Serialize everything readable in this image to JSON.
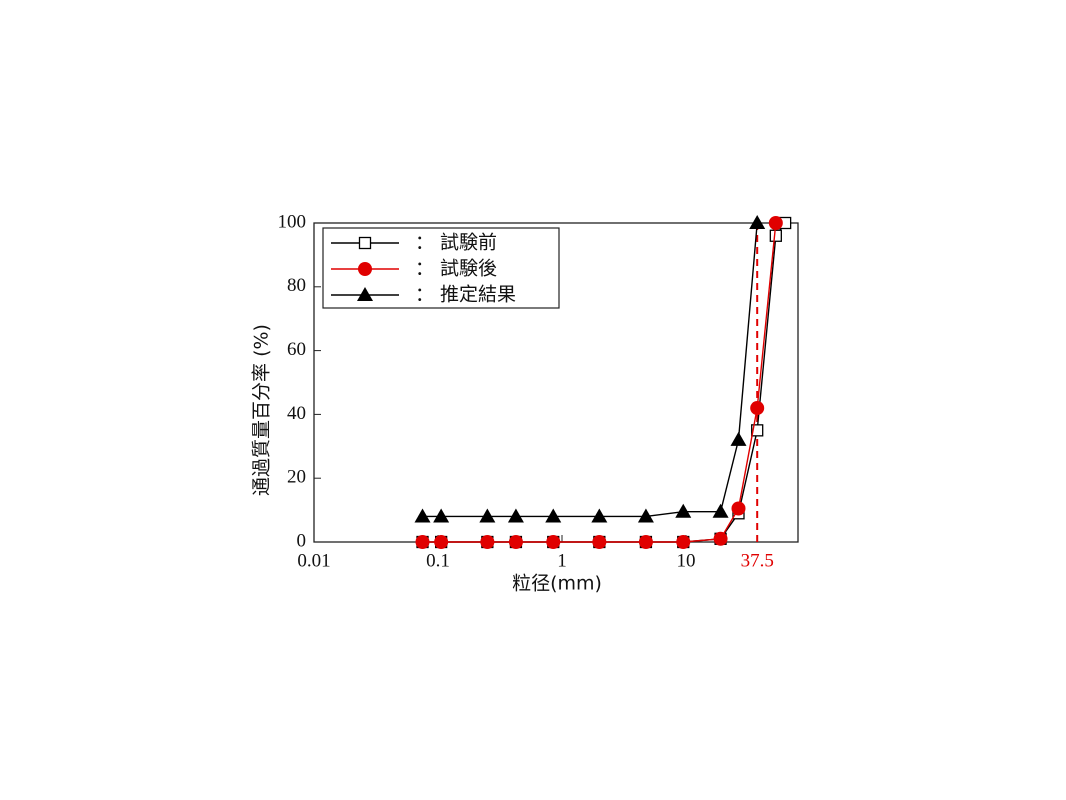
{
  "chart_data": {
    "type": "line",
    "x_label": "粒径(mm)",
    "y_label": "通過質量百分率 (%)",
    "log_x": true,
    "xlim": [
      0.01,
      80
    ],
    "xticks": [
      0.01,
      0.1,
      1,
      10
    ],
    "ylim": [
      0,
      100
    ],
    "yticks": [
      0,
      20,
      40,
      60,
      80,
      100
    ],
    "legend": "top-left",
    "reference_line": {
      "x": 37.5,
      "color": "#e00000"
    },
    "series": [
      {
        "name": "：  試験前",
        "color": "#000000",
        "marker": "square",
        "x": [
          0.075,
          0.106,
          0.25,
          0.425,
          0.85,
          2,
          4.75,
          9.5,
          19,
          26.5,
          37.5,
          53,
          63
        ],
        "values": [
          0,
          0,
          0,
          0,
          0,
          0,
          0,
          0,
          1,
          9,
          35,
          96,
          100
        ]
      },
      {
        "name": "：  試験後",
        "color": "#e00000",
        "marker": "circle",
        "x": [
          0.075,
          0.106,
          0.25,
          0.425,
          0.85,
          2,
          4.75,
          9.5,
          19,
          26.5,
          37.5,
          53
        ],
        "values": [
          0,
          0,
          0,
          0,
          0,
          0,
          0,
          0,
          1,
          10.5,
          42,
          100
        ]
      },
      {
        "name": "：  推定結果",
        "color": "#000000",
        "marker": "triangle",
        "x": [
          0.075,
          0.106,
          0.25,
          0.425,
          0.85,
          2,
          4.75,
          9.5,
          19,
          26.5,
          37.5
        ],
        "values": [
          8,
          8,
          8,
          8,
          8,
          8,
          8,
          9.5,
          9.5,
          32,
          100
        ]
      }
    ]
  }
}
